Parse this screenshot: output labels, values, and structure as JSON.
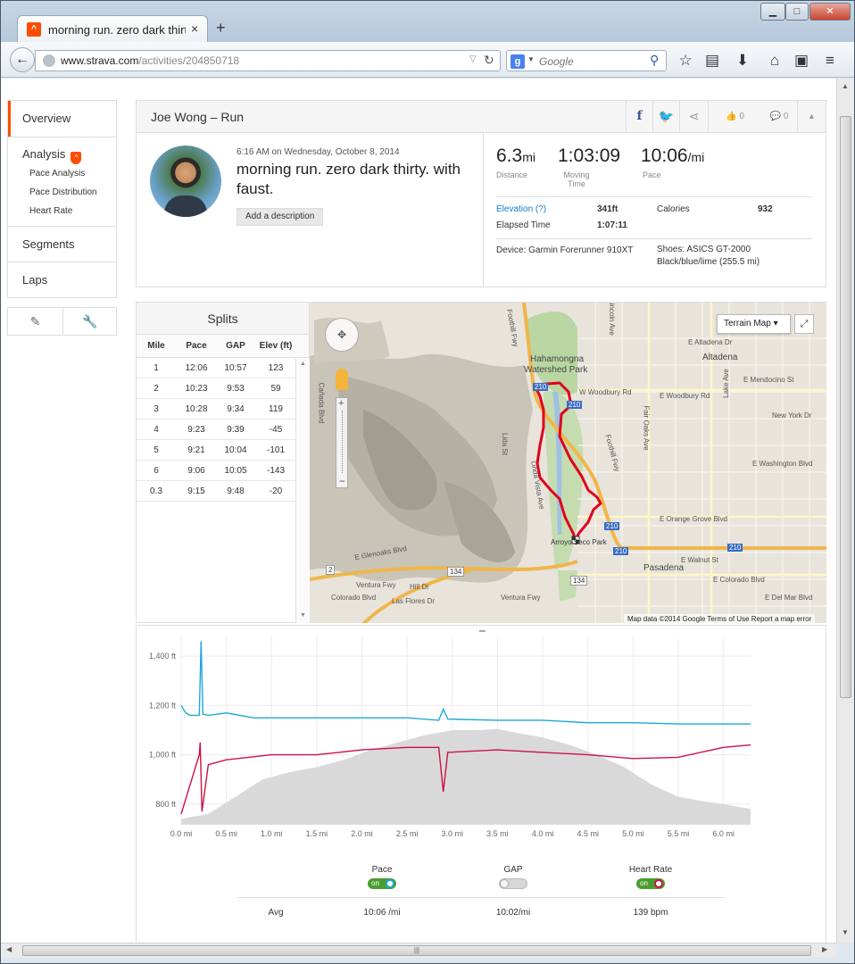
{
  "browser": {
    "tab_title": "morning run. zero dark thirt...",
    "tab_close": "×",
    "new_tab": "+",
    "url_host": "www.strava.com",
    "url_path": "/activities/204850718",
    "search_placeholder": "Google",
    "search_engine_letter": "g",
    "window_controls": {
      "minimize": "▁",
      "maximize": "□",
      "close": "✕"
    }
  },
  "sidebar": {
    "overview": "Overview",
    "analysis": "Analysis",
    "analysis_sub": [
      "Pace Analysis",
      "Pace Distribution",
      "Heart Rate"
    ],
    "segments": "Segments",
    "laps": "Laps",
    "tools": [
      "pencil-icon",
      "wrench-icon"
    ]
  },
  "activity": {
    "owner_line": "Joe Wong – Run",
    "datetime": "6:16 AM on Wednesday, October 8, 2014",
    "title": "morning run. zero dark thirty. with faust.",
    "add_description": "Add a description",
    "kudos_count": "0",
    "comment_count": "0",
    "stats": {
      "distance_value": "6.3",
      "distance_unit": "mi",
      "distance_label": "Distance",
      "moving_time_value": "1:03:09",
      "moving_time_label": "Moving Time",
      "pace_value": "10:06",
      "pace_unit": "/mi",
      "pace_label": "Pace",
      "elevation_label": "Elevation (?)",
      "elevation_value": "341ft",
      "calories_label": "Calories",
      "calories_value": "932",
      "elapsed_label": "Elapsed Time",
      "elapsed_value": "1:07:11",
      "device": "Device: Garmin Forerunner 910XT",
      "shoes": "Shoes: ASICS GT-2000 Black/blue/lime (255.5 mi)"
    }
  },
  "splits": {
    "title": "Splits",
    "headers": [
      "Mile",
      "Pace",
      "GAP",
      "Elev (ft)"
    ],
    "rows": [
      [
        "1",
        "12:06",
        "10:57",
        "123"
      ],
      [
        "2",
        "10:23",
        "9:53",
        "59"
      ],
      [
        "3",
        "10:28",
        "9:34",
        "119"
      ],
      [
        "4",
        "9:23",
        "9:39",
        "-45"
      ],
      [
        "5",
        "9:21",
        "10:04",
        "-101"
      ],
      [
        "6",
        "9:06",
        "10:05",
        "-143"
      ],
      [
        "0.3",
        "9:15",
        "9:48",
        "-20"
      ]
    ]
  },
  "map": {
    "terrain_button": "Terrain Map",
    "attribution": "Map data ©2014 Google   Terms of Use   Report a map error",
    "labels": {
      "hahamongna": "Hahamongna",
      "watershed": "Watershed Park",
      "altadena": "Altadena",
      "pasadena": "Pasadena",
      "arroyo": "Arroyo Seco Park",
      "w_woodbury": "W Woodbury Rd",
      "e_woodbury": "E Woodbury Rd",
      "e_altadena": "E Altadena Dr",
      "e_mendocino": "E Mendocino St",
      "new_york": "New York Dr",
      "e_washington": "E Washington Blvd",
      "e_orange": "E Orange Grove Blvd",
      "e_walnut": "E Walnut St",
      "e_colorado": "E Colorado Blvd",
      "e_del_mar": "E Del Mar Blvd",
      "ventura": "Ventura Fwy",
      "ventura2": "Ventura Fwy",
      "foothill": "Foothill Fwy",
      "foothill2": "Foothill Fwy",
      "lincoln": "Lincoln Ave",
      "linda_vista": "Linda Vista Ave",
      "lida": "Lida St",
      "fair_oaks": "Fair Oaks Ave",
      "lake": "Lake Ave",
      "la_canada": "Cañada Blvd",
      "colorado_blvd": "Colorado Blvd",
      "hill_dr": "Hill Dr",
      "las_flores": "Las Flores Dr",
      "e_glenoaks": "E Glenoaks Blvd",
      "rt2": "2",
      "rt134": "134",
      "rt134b": "134",
      "rt210": "210",
      "rt210b": "210",
      "rt210c": "210",
      "rt210d": "210",
      "rt210e": "210"
    }
  },
  "chart_data": {
    "type": "line",
    "x_unit": "mi",
    "xlim": [
      0,
      6.3
    ],
    "ylim": [
      720,
      1480
    ],
    "xticks": [
      "0.0 mi",
      "0.5 mi",
      "1.0 mi",
      "1.5 mi",
      "2.0 mi",
      "2.5 mi",
      "3.0 mi",
      "3.5 mi",
      "4.0 mi",
      "4.5 mi",
      "5.0 mi",
      "5.5 mi",
      "6.0 mi"
    ],
    "yticks": [
      "800 ft",
      "1,000 ft",
      "1,200 ft",
      "1,400 ft"
    ],
    "ytick_values": [
      800,
      1000,
      1200,
      1400
    ],
    "grid": true,
    "series": [
      {
        "name": "Elevation",
        "kind": "area",
        "color": "#d9d9d9",
        "x": [
          0,
          0.3,
          0.6,
          0.9,
          1.2,
          1.5,
          1.8,
          2.1,
          2.4,
          2.7,
          3.0,
          3.3,
          3.5,
          3.7,
          4.0,
          4.3,
          4.6,
          4.9,
          5.2,
          5.5,
          5.8,
          6.0,
          6.3
        ],
        "y": [
          740,
          760,
          830,
          900,
          930,
          950,
          980,
          1020,
          1050,
          1080,
          1100,
          1100,
          1105,
          1090,
          1070,
          1040,
          1000,
          950,
          880,
          830,
          810,
          800,
          780
        ]
      },
      {
        "name": "Pace",
        "kind": "line",
        "color": "#1fa7d8",
        "x": [
          0,
          0.05,
          0.1,
          0.2,
          0.22,
          0.24,
          0.3,
          0.5,
          0.8,
          1.0,
          1.5,
          2.0,
          2.5,
          2.85,
          2.9,
          2.95,
          3.5,
          4.0,
          4.5,
          5.0,
          5.5,
          6.0,
          6.3
        ],
        "y": [
          1200,
          1170,
          1160,
          1160,
          1460,
          1165,
          1160,
          1170,
          1150,
          1150,
          1150,
          1150,
          1150,
          1140,
          1185,
          1145,
          1140,
          1140,
          1130,
          1130,
          1125,
          1125,
          1125
        ]
      },
      {
        "name": "Heart Rate",
        "kind": "line",
        "color": "#cc1144",
        "x": [
          0,
          0.1,
          0.2,
          0.21,
          0.23,
          0.3,
          0.5,
          1.0,
          1.5,
          2.0,
          2.5,
          2.85,
          2.9,
          2.95,
          3.5,
          4.0,
          4.5,
          5.0,
          5.5,
          6.0,
          6.3
        ],
        "y": [
          760,
          880,
          1000,
          1050,
          770,
          960,
          980,
          1000,
          1000,
          1020,
          1030,
          1030,
          850,
          1010,
          1020,
          1010,
          1000,
          985,
          990,
          1030,
          1040
        ]
      }
    ]
  },
  "legend": {
    "pace_label": "Pace",
    "gap_label": "GAP",
    "hr_label": "Heart Rate",
    "on_text": "on",
    "avg_label": "Avg",
    "avg_pace": "10:06 /mi",
    "avg_gap": "10:02/mi",
    "avg_hr": "139 bpm"
  },
  "colors": {
    "strava_orange": "#fc4c02",
    "route_red": "#e0001b",
    "link_blue": "#1c78c0",
    "facebook_blue": "#3b5998",
    "twitter_blue": "#1da1f2"
  }
}
